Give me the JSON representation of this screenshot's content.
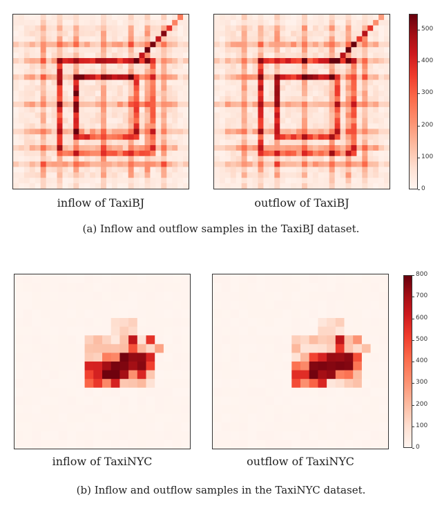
{
  "chart_data": [
    {
      "type": "heatmap",
      "title": "inflow of TaxiBJ",
      "dataset": "TaxiBJ",
      "grid": [
        32,
        32
      ],
      "vmin": 0,
      "vmax": 550,
      "colormap": "Reds",
      "pattern": "ring-road grid with hot ring segments and diagonal corridor toward top-right"
    },
    {
      "type": "heatmap",
      "title": "outflow of TaxiBJ",
      "dataset": "TaxiBJ",
      "grid": [
        32,
        32
      ],
      "vmin": 0,
      "vmax": 550,
      "colormap": "Reds",
      "pattern": "ring-road grid with hot ring segments and diagonal corridor toward top-right"
    },
    {
      "type": "heatmap",
      "title": "inflow of TaxiNYC",
      "dataset": "TaxiNYC",
      "grid": [
        20,
        20
      ],
      "vmin": 0,
      "vmax": 800,
      "colormap": "Reds",
      "pattern": "dense hotspot cluster in center (Manhattan), mostly empty elsewhere"
    },
    {
      "type": "heatmap",
      "title": "outflow of TaxiNYC",
      "dataset": "TaxiNYC",
      "grid": [
        20,
        20
      ],
      "vmin": 0,
      "vmax": 800,
      "colormap": "Reds",
      "pattern": "dense hotspot cluster in center (Manhattan), mostly empty elsewhere"
    }
  ],
  "colorbars": {
    "bj": {
      "ticks": [
        "0",
        "100",
        "200",
        "300",
        "400",
        "500"
      ],
      "vmax": 550
    },
    "nyc": {
      "ticks": [
        "0",
        "100",
        "200",
        "300",
        "400",
        "500",
        "600",
        "700",
        "800"
      ],
      "vmax": 800
    }
  },
  "labels": {
    "bj_in": "inflow of TaxiBJ",
    "bj_out": "outflow of TaxiBJ",
    "nyc_in": "inflow of TaxiNYC",
    "nyc_out": "outflow of TaxiNYC"
  },
  "captions": {
    "a": "(a)  Inflow and outflow samples in the TaxiBJ dataset.",
    "b": "(b)  Inflow and outflow samples in the TaxiNYC dataset."
  }
}
